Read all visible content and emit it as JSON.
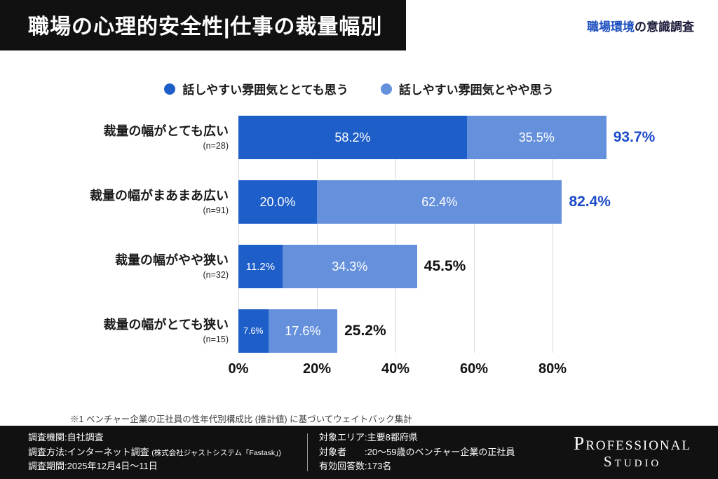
{
  "header": {
    "title": "職場の心理的安全性|仕事の裁量幅別",
    "tag_highlight": "職場環境",
    "tag_rest": "の意識調査"
  },
  "colors": {
    "strong_blue": "#1e5ec9",
    "light_blue": "#6591dc",
    "total_blue": "#1b49c8",
    "total_black": "#111111",
    "tag_blue": "#1d4fc0",
    "header_bg": "#111111",
    "footer_bg": "#111111",
    "gridline": "#d9d9d9"
  },
  "legend": {
    "items": [
      {
        "label": "話しやすい雰囲気ととても思う",
        "color": "#1e5ec9"
      },
      {
        "label": "話しやすい雰囲気とやや思う",
        "color": "#6591dc"
      }
    ]
  },
  "chart_data": {
    "type": "bar",
    "orientation": "horizontal",
    "stacked": true,
    "grid": true,
    "xlim": [
      0,
      100
    ],
    "x_ticks": [
      "0%",
      "20%",
      "40%",
      "60%",
      "80%"
    ],
    "series_names": [
      "話しやすい雰囲気ととても思う",
      "話しやすい雰囲気とやや思う"
    ],
    "rows": [
      {
        "category": "裁量の幅がとても広い",
        "n": "(n=28)",
        "v1": 58.2,
        "v2": 35.5,
        "v1_label": "58.2%",
        "v2_label": "35.5%",
        "total": 93.7,
        "total_label": "93.7%",
        "total_color": "#1b49c8"
      },
      {
        "category": "裁量の幅がまあまあ広い",
        "n": "(n=91)",
        "v1": 20.0,
        "v2": 62.4,
        "v1_label": "20.0%",
        "v2_label": "62.4%",
        "total": 82.4,
        "total_label": "82.4%",
        "total_color": "#1b49c8"
      },
      {
        "category": "裁量の幅がやや狭い",
        "n": "(n=32)",
        "v1": 11.2,
        "v2": 34.3,
        "v1_label": "11.2%",
        "v2_label": "34.3%",
        "total": 45.5,
        "total_label": "45.5%",
        "total_color": "#111111"
      },
      {
        "category": "裁量の幅がとても狭い",
        "n": "(n=15)",
        "v1": 7.6,
        "v2": 17.6,
        "v1_label": "7.6%",
        "v2_label": "17.6%",
        "total": 25.2,
        "total_label": "25.2%",
        "total_color": "#111111"
      }
    ]
  },
  "footnote": "※1 ベンチャー企業の正社員の性年代別構成比 (推計値) に基づいてウェイトバック集計",
  "footer": {
    "left_lines": [
      {
        "text": "調査機関:自社調査",
        "small": ""
      },
      {
        "text": "調査方法:インターネット調査",
        "small": "(株式会社ジャストシステム「Fastask」)"
      },
      {
        "text": "調査期間:2025年12月4日〜11日",
        "small": ""
      }
    ],
    "mid_lines": [
      {
        "text": "対象エリア:主要8都府県"
      },
      {
        "text": "対象者　　:20〜59歳のベンチャー企業の正社員"
      },
      {
        "text": "有効回答数:173名"
      }
    ],
    "logo": {
      "line1": "Professional",
      "line2": "Studio"
    }
  }
}
